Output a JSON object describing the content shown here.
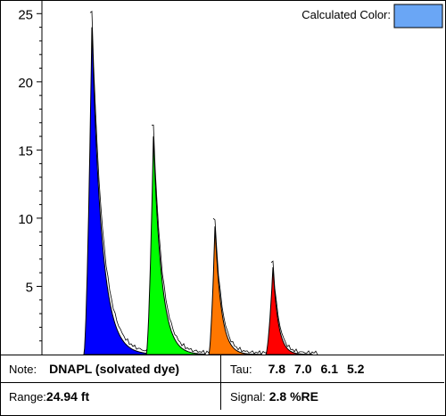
{
  "chart_data": {
    "type": "area",
    "y_ticks": [
      5,
      10,
      15,
      20,
      25
    ],
    "ylim": [
      0,
      26
    ],
    "calculated_color_label": "Calculated Color:",
    "calculated_color": "#6aa6f5",
    "series": [
      {
        "color": "#0000ff",
        "peak": 24.0
      },
      {
        "color": "#00ff00",
        "peak": 16.0
      },
      {
        "color": "#ff7700",
        "peak": 9.4
      },
      {
        "color": "#ff0000",
        "peak": 6.4
      }
    ],
    "grid": false,
    "legend": "none"
  },
  "info": {
    "note_label": "Note:",
    "note_value": "DNAPL (solvated dye)",
    "tau_label": "Tau:",
    "tau_values": [
      "7.8",
      "7.0",
      "6.1",
      "5.2"
    ],
    "range_label": "Range:",
    "range_value": "24.94 ft",
    "signal_label": "Signal:",
    "signal_value": "2.8 %RE"
  }
}
